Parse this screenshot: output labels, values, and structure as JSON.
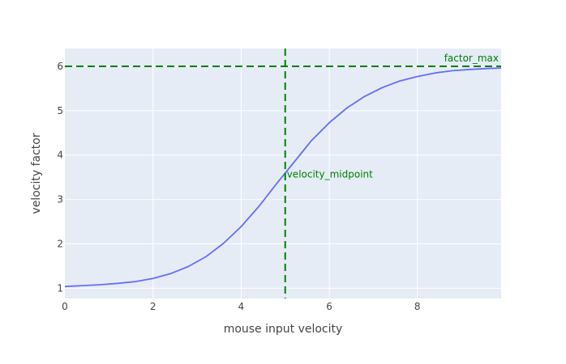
{
  "chart_data": {
    "type": "line",
    "xlabel": "mouse input velocity",
    "ylabel": "velocity factor",
    "xlim": [
      0,
      9.9
    ],
    "ylim": [
      0.77,
      6.4
    ],
    "x_ticks": [
      0,
      2,
      4,
      6,
      8
    ],
    "y_ticks": [
      1,
      2,
      3,
      4,
      5,
      6
    ],
    "grid": true,
    "series": [
      {
        "color": "#636efa",
        "x": [
          0,
          0.4,
          0.8,
          1.2,
          1.6,
          2.0,
          2.4,
          2.8,
          3.2,
          3.6,
          4.0,
          4.4,
          4.8,
          5.2,
          5.6,
          6.0,
          6.4,
          6.8,
          7.2,
          7.6,
          8.0,
          8.4,
          8.8,
          9.2,
          9.6,
          9.9
        ],
        "y": [
          1.04,
          1.06,
          1.08,
          1.11,
          1.15,
          1.22,
          1.33,
          1.49,
          1.71,
          2.01,
          2.39,
          2.84,
          3.35,
          3.84,
          4.33,
          4.73,
          5.06,
          5.32,
          5.52,
          5.67,
          5.77,
          5.85,
          5.9,
          5.93,
          5.95,
          5.96
        ]
      }
    ],
    "reference_lines": [
      {
        "orientation": "horizontal",
        "value": 6,
        "label": "factor_max",
        "color": "#008000",
        "dash": "dashed"
      },
      {
        "orientation": "vertical",
        "value": 5,
        "label": "velocity_midpoint",
        "color": "#008000",
        "dash": "dashed"
      }
    ]
  }
}
